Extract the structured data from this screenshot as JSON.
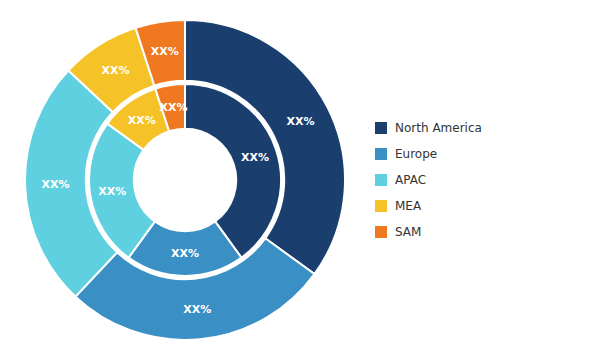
{
  "chart_data": {
    "type": "pie",
    "categories": [
      "North America",
      "Europe",
      "APAC",
      "MEA",
      "SAM"
    ],
    "colors": [
      "#1a3f6f",
      "#3a8fc4",
      "#5fd0e0",
      "#f5c228",
      "#f07820"
    ],
    "series": [
      {
        "values": [
          35,
          27,
          25,
          8,
          5
        ],
        "value_labels": [
          "XX%",
          "XX%",
          "XX%",
          "XX%",
          "XX%"
        ]
      },
      {
        "values": [
          40,
          20,
          25,
          10,
          5
        ],
        "value_labels": [
          "XX%",
          "XX%",
          "XX%",
          "XX%",
          "XX%"
        ]
      }
    ],
    "data_labels": true,
    "legend": "right"
  }
}
